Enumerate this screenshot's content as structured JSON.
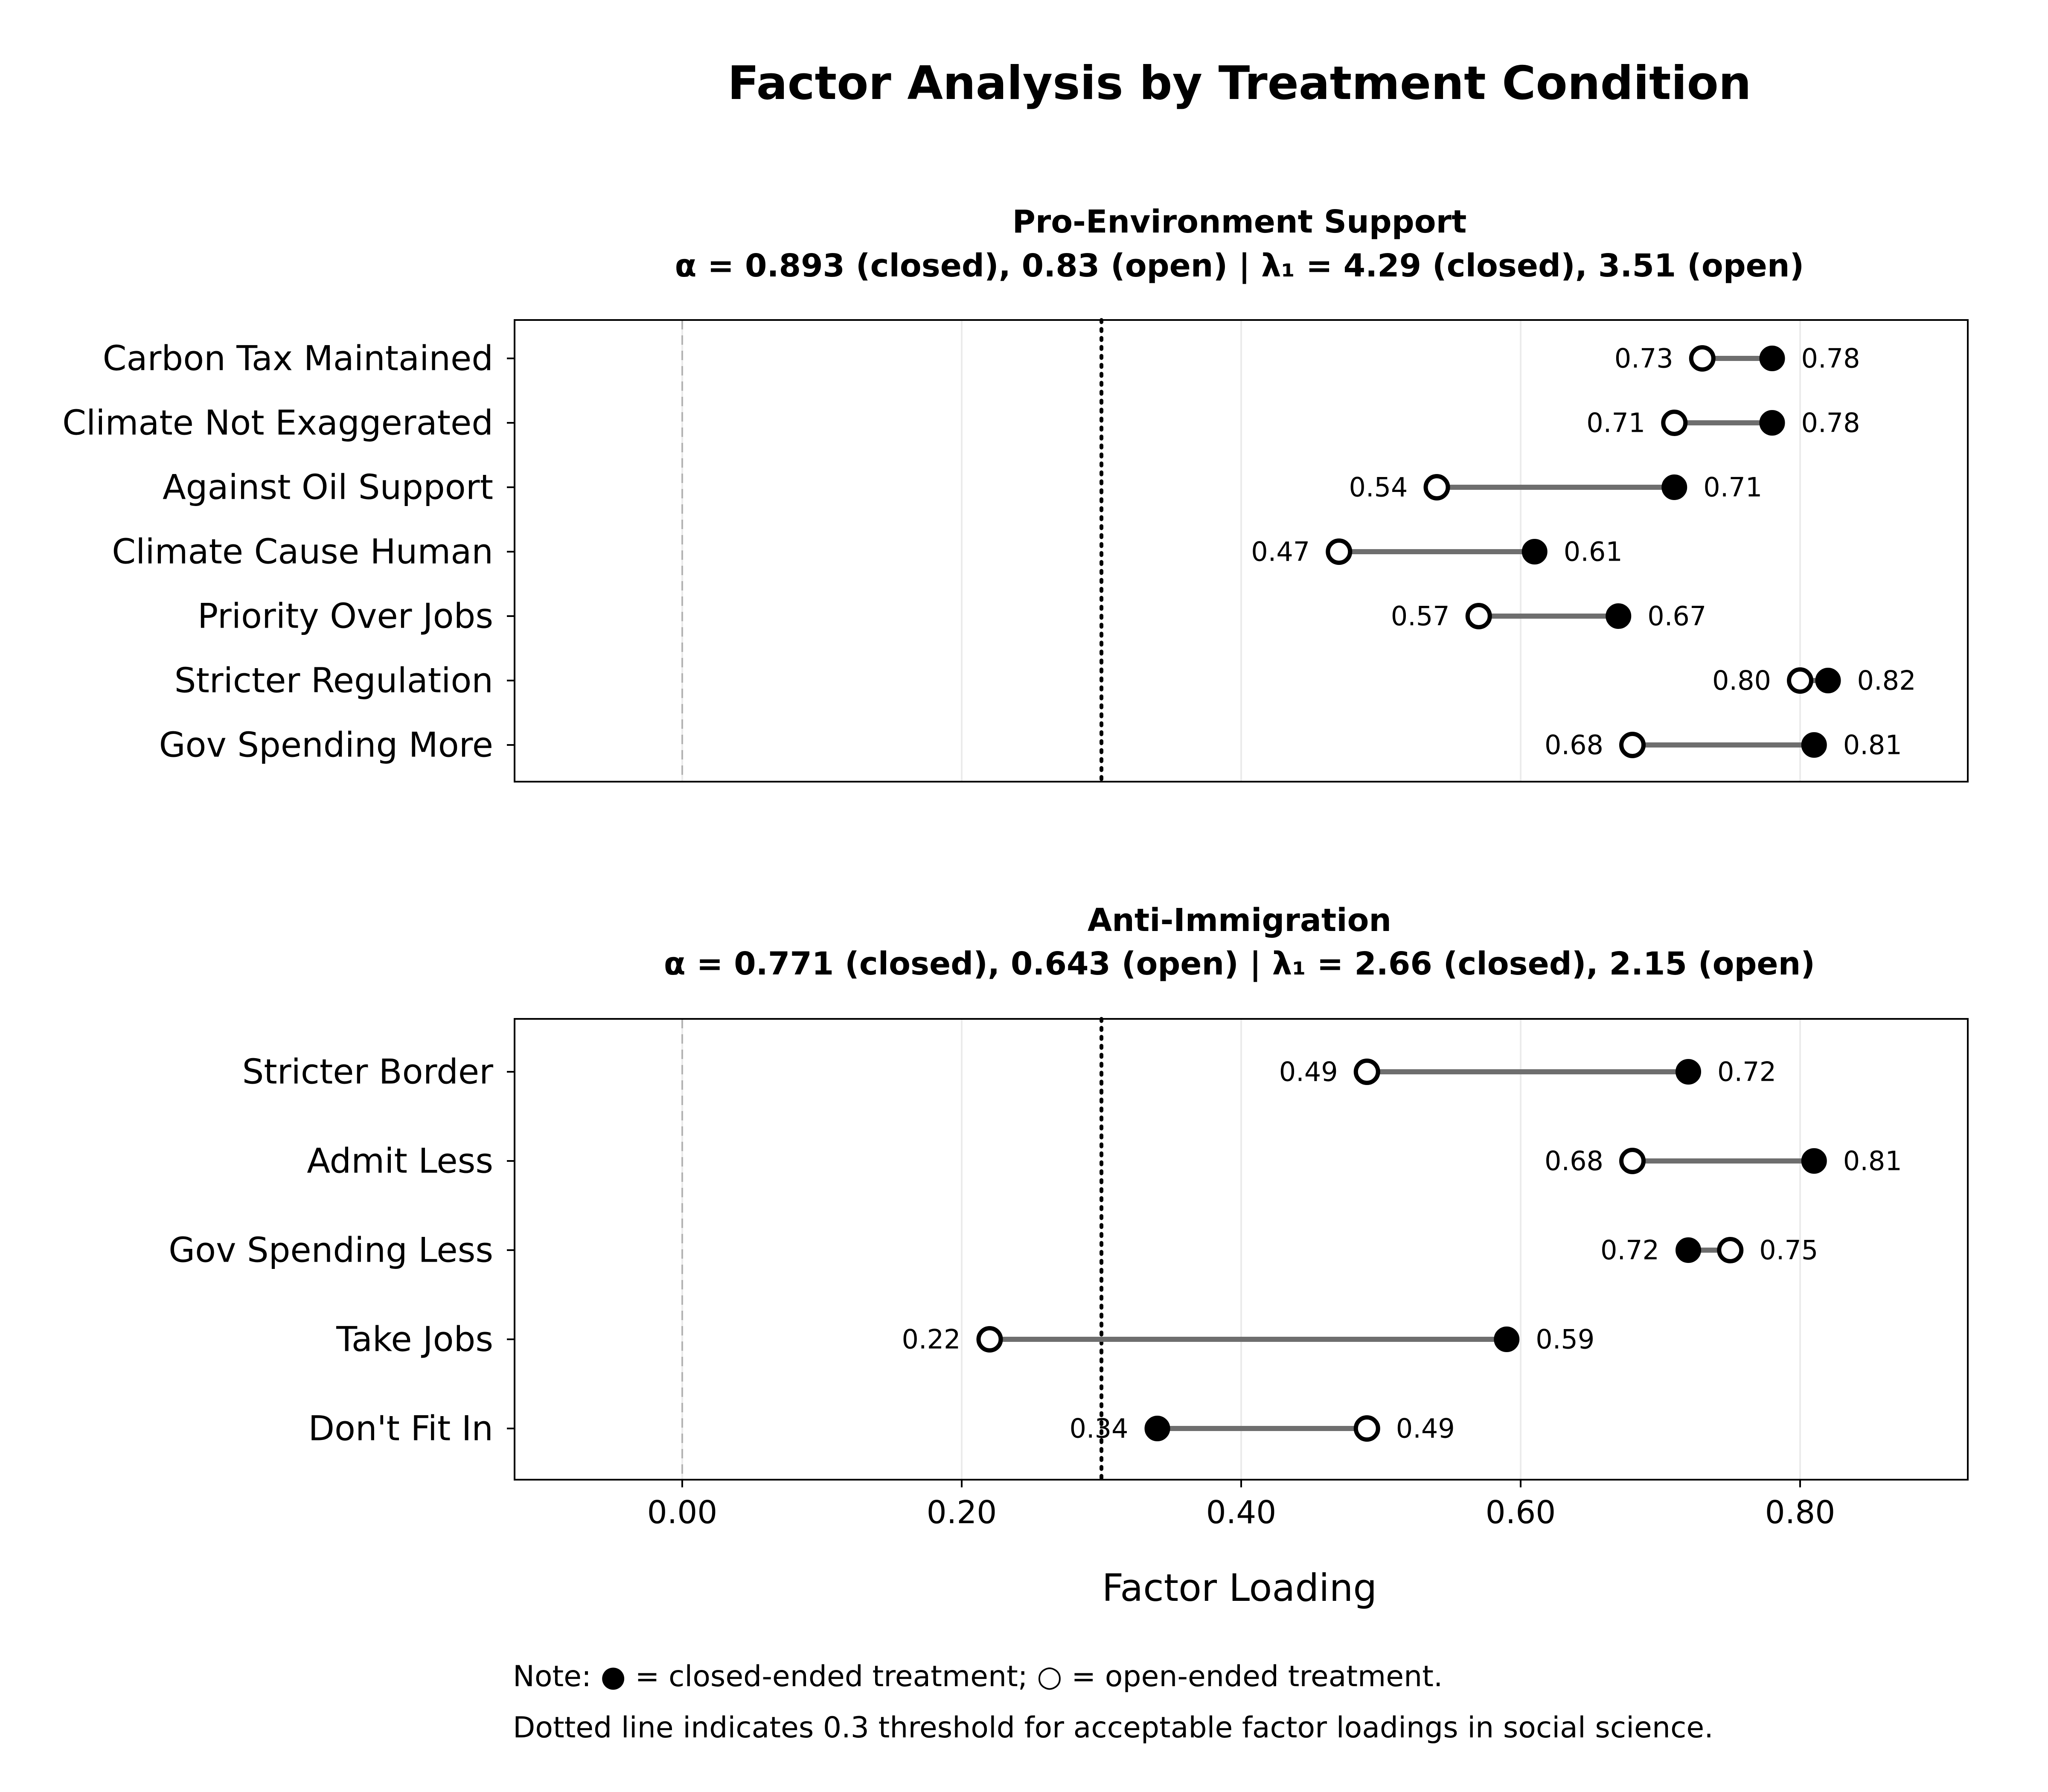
{
  "chart_data": {
    "type": "dumbbell",
    "title": "Factor Analysis by Treatment Condition",
    "xlabel": "Factor Loading",
    "xlim": [
      -0.12,
      0.92
    ],
    "x_ticks": [
      0.0,
      0.2,
      0.4,
      0.6,
      0.8
    ],
    "x_tick_labels": [
      "0.00",
      "0.20",
      "0.40",
      "0.60",
      "0.80"
    ],
    "threshold": 0.3,
    "zero_reference": 0.0,
    "grid": true,
    "colors": {
      "closed": "#000000",
      "open": "#ffffff",
      "segment": "#6e6e6e",
      "zero_line": "#b3b3b3",
      "grid": "#ebebeb"
    },
    "panels": [
      {
        "title": "Pro-Environment Support",
        "subtitle": "α = 0.893 (closed), 0.83 (open) | λ₁ = 4.29 (closed), 3.51 (open)",
        "items": [
          {
            "label": "Carbon Tax Maintained",
            "closed": 0.78,
            "open": 0.73
          },
          {
            "label": "Climate Not Exaggerated",
            "closed": 0.78,
            "open": 0.71
          },
          {
            "label": "Against Oil Support",
            "closed": 0.71,
            "open": 0.54
          },
          {
            "label": "Climate Cause Human",
            "closed": 0.61,
            "open": 0.47
          },
          {
            "label": "Priority Over Jobs",
            "closed": 0.67,
            "open": 0.57
          },
          {
            "label": "Stricter Regulation",
            "closed": 0.82,
            "open": 0.8
          },
          {
            "label": "Gov Spending More",
            "closed": 0.81,
            "open": 0.68
          }
        ]
      },
      {
        "title": "Anti-Immigration",
        "subtitle": "α = 0.771 (closed), 0.643 (open) | λ₁ = 2.66 (closed), 2.15 (open)",
        "items": [
          {
            "label": "Stricter Border",
            "closed": 0.72,
            "open": 0.49
          },
          {
            "label": "Admit Less",
            "closed": 0.81,
            "open": 0.68
          },
          {
            "label": "Gov Spending Less",
            "closed": 0.72,
            "open": 0.75
          },
          {
            "label": "Take Jobs",
            "closed": 0.59,
            "open": 0.22
          },
          {
            "label": "Don't Fit In",
            "closed": 0.34,
            "open": 0.49
          }
        ]
      }
    ]
  },
  "notes": {
    "line1": "Note: ● = closed-ended treatment; ○ = open-ended treatment.",
    "line2": "Dotted line indicates 0.3 threshold for acceptable factor loadings in social science."
  }
}
